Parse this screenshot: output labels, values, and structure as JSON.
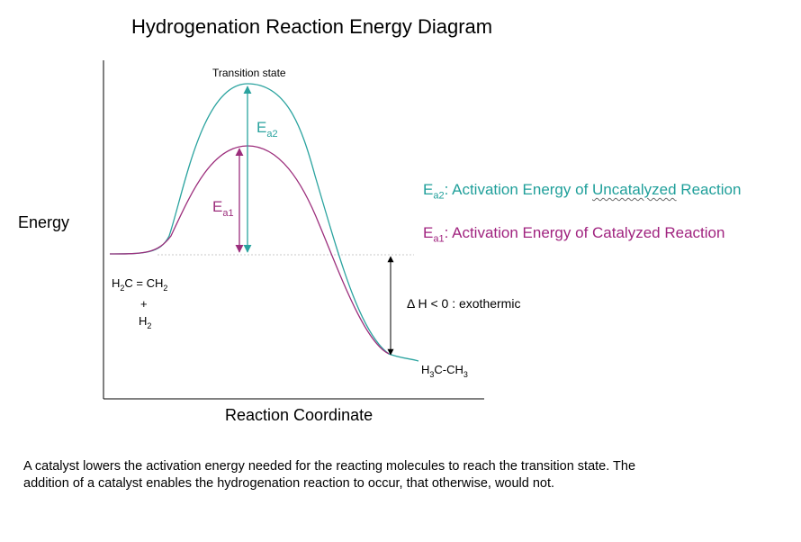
{
  "title": "Hydrogenation Reaction Energy Diagram",
  "axes": {
    "y_label": "Energy",
    "x_label": "Reaction Coordinate"
  },
  "labels": {
    "transition_state": "Transition state",
    "ea2": {
      "main": "E",
      "sub": "a2"
    },
    "ea1": {
      "main": "E",
      "sub": "a1"
    },
    "reactant_line1": {
      "a": "H",
      "a_sub": "2",
      "b": "C = CH",
      "b_sub": "2"
    },
    "reactant_plus": "+",
    "reactant_line2": {
      "a": "H",
      "a_sub": "2"
    },
    "product": {
      "a": "H",
      "a_sub": "3",
      "b": "C-CH",
      "b_sub": "3"
    },
    "delta_h": "Δ H < 0 : exothermic"
  },
  "legend": {
    "uncatalyzed": {
      "main": "E",
      "sub": "a2",
      "prefix": ": Activation Energy of ",
      "wavy": "Uncatalyzed",
      "suffix": " Reaction"
    },
    "catalyzed": {
      "main": "E",
      "sub": "a1",
      "text": ": Activation Energy of Catalyzed Reaction"
    }
  },
  "caption": "A catalyst lowers the activation energy needed for the reacting molecules to reach the transition state.  The addition of a catalyst enables the hydrogenation reaction to occur, that otherwise, would not.",
  "colors": {
    "uncatalyzed": "#2aa39f",
    "catalyzed": "#9c2e7c",
    "legend_uncatalyzed": "#1f9f9a",
    "legend_catalyzed": "#a0237f",
    "axis": "#000000",
    "dotted": "#c9c9c9"
  }
}
